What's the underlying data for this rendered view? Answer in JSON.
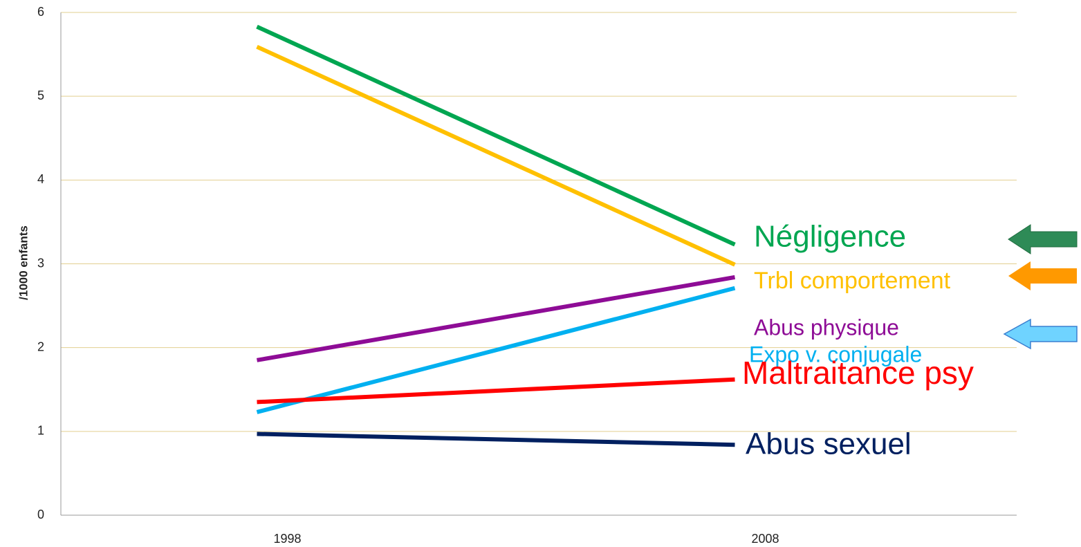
{
  "chart_data": {
    "type": "line",
    "y_label": "/1000 enfants",
    "categories": [
      "1998",
      "2008"
    ],
    "series": [
      {
        "name": "Négligence",
        "color": "#00a651",
        "values": [
          5.83,
          3.23
        ]
      },
      {
        "name": "Trbl comportement",
        "color": "#ffc000",
        "values": [
          5.59,
          2.99
        ]
      },
      {
        "name": "Abus physique",
        "color": "#8e0c96",
        "values": [
          1.85,
          2.84
        ]
      },
      {
        "name": "Expo v. conjugale",
        "color": "#00b0f0",
        "values": [
          1.23,
          2.71
        ]
      },
      {
        "name": "Maltraitance psy",
        "color": "#ff0000",
        "values": [
          1.35,
          1.62
        ]
      },
      {
        "name": "Abus sexuel",
        "color": "#002060",
        "values": [
          0.97,
          0.84
        ]
      }
    ],
    "ylim": [
      0,
      6
    ],
    "yticks": [
      0,
      1,
      2,
      3,
      4,
      5,
      6
    ],
    "grid": true
  }
}
